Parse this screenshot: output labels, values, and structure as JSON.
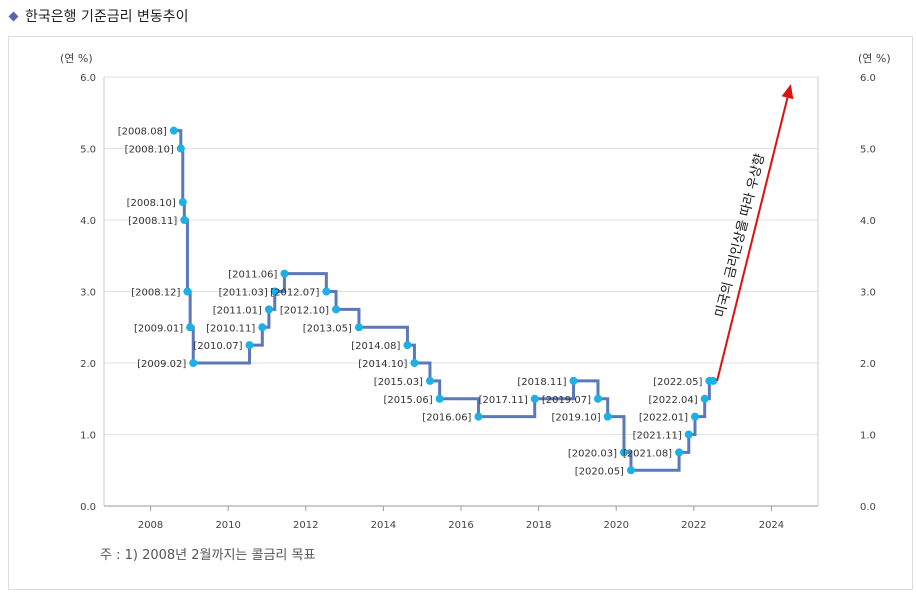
{
  "header": {
    "title": "한국은행 기준금리 변동추이"
  },
  "note": "주 : 1) 2008년 2월까지는 콜금리 목표",
  "chart_data": {
    "type": "line",
    "title": "한국은행 기준금리 변동추이",
    "y_unit_left": "(연 %)",
    "y_unit_right": "(연 %)",
    "xlim": [
      2006.8,
      2025.2
    ],
    "ylim": [
      0,
      6
    ],
    "x_ticks": [
      2008,
      2010,
      2012,
      2014,
      2016,
      2018,
      2020,
      2022,
      2024
    ],
    "y_ticks": [
      0.0,
      1.0,
      2.0,
      3.0,
      4.0,
      5.0,
      6.0
    ],
    "y_tick_labels": [
      "0.0",
      "1.0",
      "2.0",
      "3.0",
      "4.0",
      "5.0",
      "6.0"
    ],
    "grid": true,
    "series_color": "#5b78b8",
    "point_color": "#1bb0e6",
    "points": [
      {
        "x": 2008.6,
        "y": 5.25,
        "label": "[2008.08]"
      },
      {
        "x": 2008.78,
        "y": 5.0,
        "label": "[2008.10]"
      },
      {
        "x": 2008.83,
        "y": 4.25,
        "label": "[2008.10]"
      },
      {
        "x": 2008.87,
        "y": 4.0,
        "label": "[2008.11]"
      },
      {
        "x": 2008.95,
        "y": 3.0,
        "label": "[2008.12]"
      },
      {
        "x": 2009.02,
        "y": 2.5,
        "label": "[2009.01]"
      },
      {
        "x": 2009.1,
        "y": 2.0,
        "label": "[2009.02]"
      },
      {
        "x": 2010.55,
        "y": 2.25,
        "label": "[2010.07]"
      },
      {
        "x": 2010.88,
        "y": 2.5,
        "label": "[2010.11]"
      },
      {
        "x": 2011.05,
        "y": 2.75,
        "label": "[2011.01]"
      },
      {
        "x": 2011.2,
        "y": 3.0,
        "label": "[2011.03]"
      },
      {
        "x": 2011.45,
        "y": 3.25,
        "label": "[2011.06]"
      },
      {
        "x": 2012.53,
        "y": 3.0,
        "label": "[2012.07]"
      },
      {
        "x": 2012.78,
        "y": 2.75,
        "label": "[2012.10]"
      },
      {
        "x": 2013.37,
        "y": 2.5,
        "label": "[2013.05]"
      },
      {
        "x": 2014.62,
        "y": 2.25,
        "label": "[2014.08]"
      },
      {
        "x": 2014.8,
        "y": 2.0,
        "label": "[2014.10]"
      },
      {
        "x": 2015.2,
        "y": 1.75,
        "label": "[2015.03]"
      },
      {
        "x": 2015.45,
        "y": 1.5,
        "label": "[2015.06]"
      },
      {
        "x": 2016.45,
        "y": 1.25,
        "label": "[2016.06]"
      },
      {
        "x": 2017.9,
        "y": 1.5,
        "label": "[2017.11]"
      },
      {
        "x": 2018.9,
        "y": 1.75,
        "label": "[2018.11]"
      },
      {
        "x": 2019.53,
        "y": 1.5,
        "label": "[2019.07]"
      },
      {
        "x": 2019.78,
        "y": 1.25,
        "label": "[2019.10]"
      },
      {
        "x": 2020.2,
        "y": 0.75,
        "label": "[2020.03]"
      },
      {
        "x": 2020.38,
        "y": 0.5,
        "label": "[2020.05]"
      },
      {
        "x": 2021.62,
        "y": 0.75,
        "label": "[2021.08]"
      },
      {
        "x": 2021.87,
        "y": 1.0,
        "label": "[2021.11]"
      },
      {
        "x": 2022.03,
        "y": 1.25,
        "label": "[2022.01]"
      },
      {
        "x": 2022.28,
        "y": 1.5,
        "label": "[2022.04]"
      },
      {
        "x": 2022.4,
        "y": 1.75,
        "label": "[2022.05]"
      },
      {
        "x": 2022.5,
        "y": 1.75,
        "label": ""
      }
    ],
    "annotation": {
      "text": "미국의 금리인상을 따라 우상향",
      "from": {
        "x": 2022.6,
        "y": 1.75
      },
      "to": {
        "x": 2024.5,
        "y": 5.9
      },
      "color": "#dd1111"
    }
  }
}
